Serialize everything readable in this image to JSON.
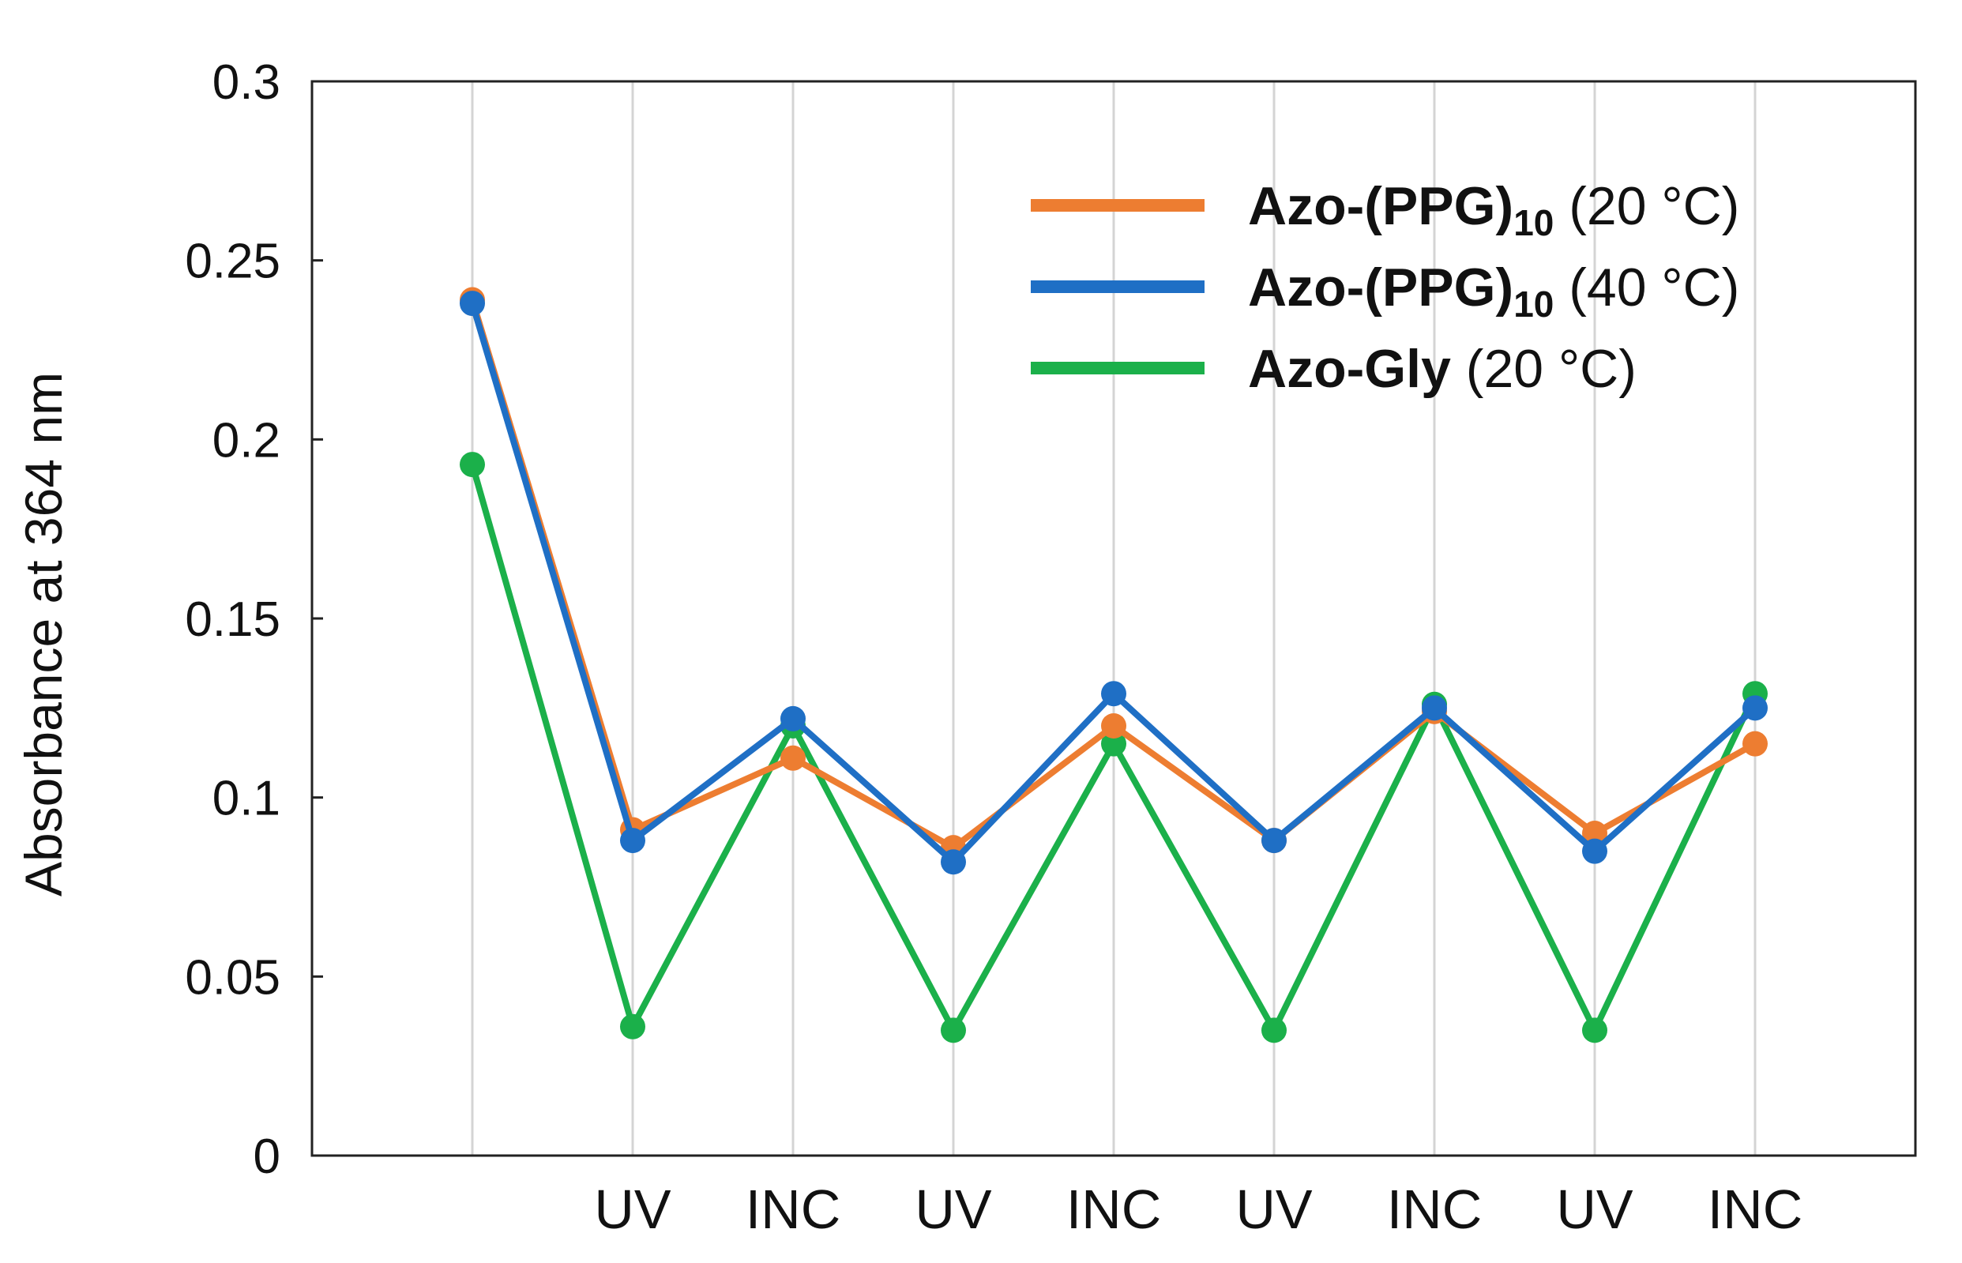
{
  "chart_data": {
    "type": "line",
    "title": "",
    "xlabel": "",
    "ylabel": "Absorbance at 364 nm",
    "ylim": [
      0,
      0.3
    ],
    "y_ticks": [
      "0",
      "0.05",
      "0.1",
      "0.15",
      "0.2",
      "0.25",
      "0.3"
    ],
    "categories": [
      "",
      "UV",
      "INC",
      "UV",
      "INC",
      "UV",
      "INC",
      "UV",
      "INC"
    ],
    "grid": "vertical",
    "legend_position": "top-right",
    "series": [
      {
        "name": "Azo-(PPG)10 (20 °C)",
        "name_bold": "Azo-(PPG)",
        "name_sub": "10",
        "name_rest": " (20 °C)",
        "color": "#ED7D31",
        "values": [
          0.239,
          0.091,
          0.111,
          0.086,
          0.12,
          0.088,
          0.124,
          0.09,
          0.115
        ]
      },
      {
        "name": "Azo-(PPG)10 (40 °C)",
        "name_bold": "Azo-(PPG)",
        "name_sub": "10",
        "name_rest": " (40 °C)",
        "color": "#1F6FC5",
        "values": [
          0.238,
          0.088,
          0.122,
          0.082,
          0.129,
          0.088,
          0.125,
          0.085,
          0.125
        ]
      },
      {
        "name": "Azo-Gly (20 °C)",
        "name_bold": "Azo-Gly",
        "name_sub": "",
        "name_rest": " (20 °C)",
        "color": "#1BB04A",
        "values": [
          0.193,
          0.036,
          0.12,
          0.035,
          0.115,
          0.035,
          0.126,
          0.035,
          0.129
        ]
      }
    ]
  }
}
